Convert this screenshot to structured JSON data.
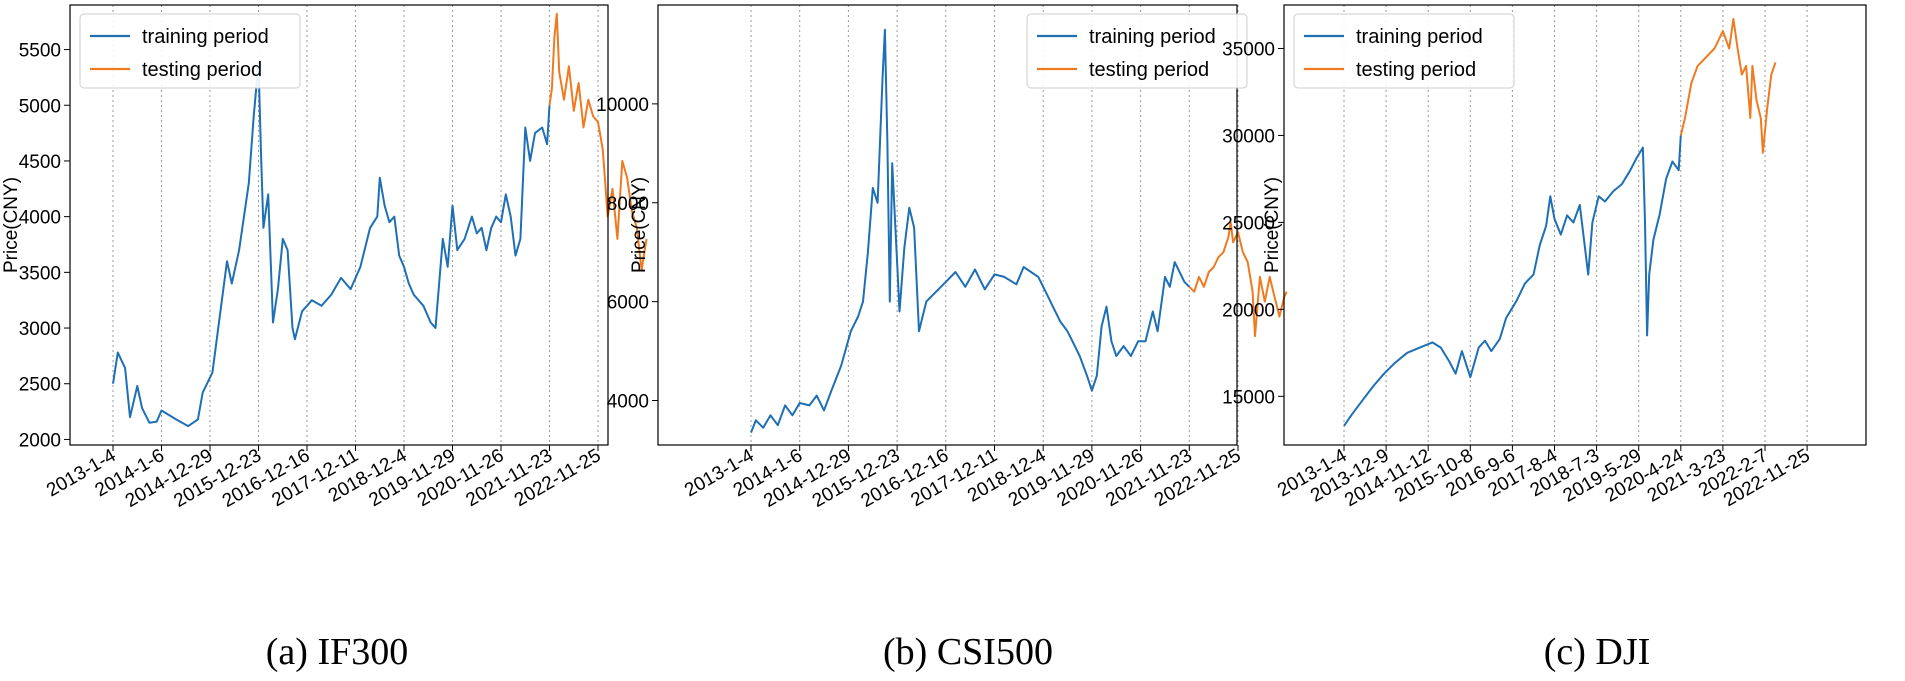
{
  "colors": {
    "training": "#1f6fb4",
    "testing": "#f07a20",
    "grid": "#9a9a9a"
  },
  "chart_data": [
    {
      "type": "line",
      "caption": "(a) IF300",
      "ylabel": "Price(CNY)",
      "ylim": [
        1950,
        5900
      ],
      "yticks": [
        2000,
        2500,
        3000,
        3500,
        4000,
        4500,
        5000,
        5500
      ],
      "xticks": [
        "2013-1-4",
        "2014-1-6",
        "2014-12-29",
        "2015-12-23",
        "2016-12-16",
        "2017-12-11",
        "2018-12-4",
        "2019-11-29",
        "2020-11-26",
        "2021-11-23",
        "2022-11-25"
      ],
      "grid": "vertical dotted at x ticks",
      "legend_position": "top-left",
      "series": [
        {
          "name": "training period",
          "values": [
            [
              0,
              2500
            ],
            [
              0.1,
              2780
            ],
            [
              0.25,
              2640
            ],
            [
              0.35,
              2200
            ],
            [
              0.5,
              2480
            ],
            [
              0.6,
              2280
            ],
            [
              0.75,
              2150
            ],
            [
              0.9,
              2160
            ],
            [
              1.0,
              2260
            ],
            [
              1.3,
              2180
            ],
            [
              1.55,
              2120
            ],
            [
              1.75,
              2180
            ],
            [
              1.85,
              2420
            ],
            [
              2.05,
              2600
            ],
            [
              2.2,
              3100
            ],
            [
              2.35,
              3600
            ],
            [
              2.45,
              3400
            ],
            [
              2.6,
              3700
            ],
            [
              2.8,
              4300
            ],
            [
              2.9,
              4900
            ],
            [
              3.0,
              5380
            ],
            [
              3.05,
              4600
            ],
            [
              3.1,
              3900
            ],
            [
              3.2,
              4200
            ],
            [
              3.3,
              3050
            ],
            [
              3.4,
              3350
            ],
            [
              3.5,
              3800
            ],
            [
              3.6,
              3700
            ],
            [
              3.7,
              3000
            ],
            [
              3.75,
              2900
            ],
            [
              3.9,
              3150
            ],
            [
              4.1,
              3250
            ],
            [
              4.3,
              3200
            ],
            [
              4.5,
              3300
            ],
            [
              4.7,
              3450
            ],
            [
              4.9,
              3350
            ],
            [
              5.1,
              3550
            ],
            [
              5.3,
              3900
            ],
            [
              5.45,
              4000
            ],
            [
              5.5,
              4350
            ],
            [
              5.6,
              4100
            ],
            [
              5.7,
              3950
            ],
            [
              5.8,
              4000
            ],
            [
              5.9,
              3650
            ],
            [
              6.0,
              3550
            ],
            [
              6.1,
              3400
            ],
            [
              6.2,
              3300
            ],
            [
              6.4,
              3200
            ],
            [
              6.55,
              3050
            ],
            [
              6.65,
              3000
            ],
            [
              6.8,
              3800
            ],
            [
              6.9,
              3550
            ],
            [
              7.0,
              4100
            ],
            [
              7.1,
              3700
            ],
            [
              7.25,
              3800
            ],
            [
              7.4,
              4000
            ],
            [
              7.5,
              3850
            ],
            [
              7.6,
              3900
            ],
            [
              7.7,
              3700
            ],
            [
              7.8,
              3900
            ],
            [
              7.9,
              4000
            ],
            [
              8.0,
              3950
            ],
            [
              8.1,
              4200
            ],
            [
              8.2,
              4000
            ],
            [
              8.3,
              3650
            ],
            [
              8.4,
              3800
            ],
            [
              8.5,
              4800
            ],
            [
              8.6,
              4500
            ],
            [
              8.7,
              4750
            ],
            [
              8.85,
              4800
            ],
            [
              8.95,
              4650
            ],
            [
              9.0,
              5000
            ]
          ]
        },
        {
          "name": "testing period",
          "values": [
            [
              9.0,
              5000
            ],
            [
              9.05,
              5150
            ],
            [
              9.1,
              5600
            ],
            [
              9.15,
              5820
            ],
            [
              9.2,
              5300
            ],
            [
              9.3,
              5050
            ],
            [
              9.4,
              5350
            ],
            [
              9.5,
              4950
            ],
            [
              9.6,
              5200
            ],
            [
              9.7,
              4800
            ],
            [
              9.8,
              5050
            ],
            [
              9.9,
              4900
            ],
            [
              10.0,
              4850
            ],
            [
              10.1,
              4600
            ],
            [
              10.2,
              4000
            ],
            [
              10.3,
              4250
            ],
            [
              10.4,
              3800
            ],
            [
              10.5,
              4500
            ],
            [
              10.6,
              4350
            ],
            [
              10.7,
              4050
            ],
            [
              10.8,
              3900
            ],
            [
              10.9,
              3520
            ],
            [
              11.0,
              3800
            ]
          ]
        }
      ]
    },
    {
      "type": "line",
      "caption": "(b) CSI500",
      "ylabel": "Price(CNY)",
      "ylim": [
        3100,
        12000
      ],
      "yticks": [
        4000,
        6000,
        8000,
        10000
      ],
      "xticks": [
        "2013-1-4",
        "2014-1-6",
        "2014-12-29",
        "2015-12-23",
        "2016-12-16",
        "2017-12-11",
        "2018-12-4",
        "2019-11-29",
        "2020-11-26",
        "2021-11-23",
        "2022-11-25"
      ],
      "grid": "vertical dotted at x ticks",
      "legend_position": "top-right",
      "series": [
        {
          "name": "training period",
          "values": [
            [
              0,
              3350
            ],
            [
              0.1,
              3600
            ],
            [
              0.25,
              3450
            ],
            [
              0.4,
              3700
            ],
            [
              0.55,
              3500
            ],
            [
              0.7,
              3900
            ],
            [
              0.85,
              3700
            ],
            [
              1.0,
              3950
            ],
            [
              1.2,
              3900
            ],
            [
              1.35,
              4100
            ],
            [
              1.5,
              3800
            ],
            [
              1.65,
              4200
            ],
            [
              1.85,
              4700
            ],
            [
              2.05,
              5400
            ],
            [
              2.2,
              5700
            ],
            [
              2.3,
              6000
            ],
            [
              2.4,
              7000
            ],
            [
              2.5,
              8300
            ],
            [
              2.6,
              8000
            ],
            [
              2.7,
              10500
            ],
            [
              2.75,
              11500
            ],
            [
              2.8,
              9200
            ],
            [
              2.85,
              6000
            ],
            [
              2.9,
              8800
            ],
            [
              3.0,
              6800
            ],
            [
              3.05,
              5800
            ],
            [
              3.15,
              7100
            ],
            [
              3.25,
              7900
            ],
            [
              3.35,
              7500
            ],
            [
              3.45,
              5400
            ],
            [
              3.6,
              6000
            ],
            [
              3.8,
              6200
            ],
            [
              4.0,
              6400
            ],
            [
              4.2,
              6600
            ],
            [
              4.4,
              6300
            ],
            [
              4.6,
              6650
            ],
            [
              4.8,
              6250
            ],
            [
              5.0,
              6550
            ],
            [
              5.2,
              6500
            ],
            [
              5.45,
              6350
            ],
            [
              5.6,
              6700
            ],
            [
              5.75,
              6600
            ],
            [
              5.9,
              6500
            ],
            [
              6.05,
              6200
            ],
            [
              6.2,
              5900
            ],
            [
              6.35,
              5600
            ],
            [
              6.5,
              5400
            ],
            [
              6.6,
              5200
            ],
            [
              6.75,
              4900
            ],
            [
              6.9,
              4500
            ],
            [
              7.0,
              4200
            ],
            [
              7.1,
              4500
            ],
            [
              7.2,
              5500
            ],
            [
              7.3,
              5900
            ],
            [
              7.4,
              5200
            ],
            [
              7.5,
              4900
            ],
            [
              7.65,
              5100
            ],
            [
              7.8,
              4900
            ],
            [
              7.95,
              5200
            ],
            [
              8.1,
              5200
            ],
            [
              8.25,
              5800
            ],
            [
              8.35,
              5400
            ],
            [
              8.5,
              6500
            ],
            [
              8.6,
              6300
            ],
            [
              8.7,
              6800
            ],
            [
              8.8,
              6600
            ],
            [
              8.9,
              6400
            ],
            [
              9.0,
              6300
            ]
          ]
        },
        {
          "name": "testing period",
          "values": [
            [
              9.0,
              6300
            ],
            [
              9.1,
              6200
            ],
            [
              9.2,
              6500
            ],
            [
              9.3,
              6300
            ],
            [
              9.4,
              6600
            ],
            [
              9.5,
              6700
            ],
            [
              9.6,
              6900
            ],
            [
              9.7,
              7000
            ],
            [
              9.8,
              7300
            ],
            [
              9.85,
              7600
            ],
            [
              9.9,
              7200
            ],
            [
              10.0,
              7400
            ],
            [
              10.1,
              7000
            ],
            [
              10.2,
              6800
            ],
            [
              10.3,
              6200
            ],
            [
              10.35,
              5300
            ],
            [
              10.45,
              6500
            ],
            [
              10.55,
              6000
            ],
            [
              10.65,
              6500
            ],
            [
              10.75,
              6100
            ],
            [
              10.85,
              5700
            ],
            [
              10.95,
              6100
            ],
            [
              11.0,
              6200
            ]
          ]
        }
      ]
    },
    {
      "type": "line",
      "caption": "(c) DJI",
      "ylabel": "Price(CNY)",
      "ylim": [
        12200,
        37500
      ],
      "yticks": [
        15000,
        20000,
        25000,
        30000,
        35000
      ],
      "xticks": [
        "2013-1-4",
        "2013-12-9",
        "2014-11-12",
        "2015-10-8",
        "2016-9-6",
        "2017-8-4",
        "2018-7-3",
        "2019-5-29",
        "2020-4-24",
        "2021-3-23",
        "2022-2-7",
        "2022-11-25"
      ],
      "grid": "vertical dotted at x ticks",
      "legend_position": "top-left",
      "series": [
        {
          "name": "training period",
          "values": [
            [
              0,
              13300
            ],
            [
              0.2,
              14000
            ],
            [
              0.45,
              14800
            ],
            [
              0.7,
              15600
            ],
            [
              0.95,
              16300
            ],
            [
              1.2,
              16900
            ],
            [
              1.5,
              17500
            ],
            [
              1.8,
              17800
            ],
            [
              2.1,
              18100
            ],
            [
              2.3,
              17800
            ],
            [
              2.5,
              17000
            ],
            [
              2.65,
              16300
            ],
            [
              2.8,
              17600
            ],
            [
              3.0,
              16100
            ],
            [
              3.2,
              17800
            ],
            [
              3.35,
              18200
            ],
            [
              3.5,
              17600
            ],
            [
              3.7,
              18300
            ],
            [
              3.85,
              19500
            ],
            [
              4.1,
              20500
            ],
            [
              4.3,
              21500
            ],
            [
              4.5,
              22000
            ],
            [
              4.65,
              23700
            ],
            [
              4.8,
              24800
            ],
            [
              4.9,
              26500
            ],
            [
              5.0,
              25200
            ],
            [
              5.15,
              24300
            ],
            [
              5.3,
              25400
            ],
            [
              5.45,
              25000
            ],
            [
              5.6,
              26000
            ],
            [
              5.7,
              24000
            ],
            [
              5.8,
              22000
            ],
            [
              5.9,
              25000
            ],
            [
              6.05,
              26500
            ],
            [
              6.2,
              26200
            ],
            [
              6.4,
              26800
            ],
            [
              6.6,
              27200
            ],
            [
              6.8,
              28000
            ],
            [
              6.95,
              28700
            ],
            [
              7.1,
              29300
            ],
            [
              7.15,
              25000
            ],
            [
              7.2,
              18500
            ],
            [
              7.25,
              22000
            ],
            [
              7.35,
              24000
            ],
            [
              7.5,
              25500
            ],
            [
              7.65,
              27500
            ],
            [
              7.8,
              28500
            ],
            [
              7.95,
              28000
            ],
            [
              8.0,
              30000
            ]
          ]
        },
        {
          "name": "testing period",
          "values": [
            [
              8.0,
              30000
            ],
            [
              8.1,
              31000
            ],
            [
              8.25,
              33000
            ],
            [
              8.4,
              34000
            ],
            [
              8.6,
              34500
            ],
            [
              8.8,
              35000
            ],
            [
              9.0,
              36000
            ],
            [
              9.15,
              35000
            ],
            [
              9.25,
              36700
            ],
            [
              9.35,
              35000
            ],
            [
              9.45,
              33500
            ],
            [
              9.55,
              34000
            ],
            [
              9.65,
              31000
            ],
            [
              9.7,
              34000
            ],
            [
              9.8,
              32000
            ],
            [
              9.9,
              31000
            ],
            [
              9.95,
              29000
            ],
            [
              10.05,
              31500
            ],
            [
              10.15,
              33500
            ],
            [
              10.25,
              34200
            ]
          ]
        }
      ]
    }
  ]
}
